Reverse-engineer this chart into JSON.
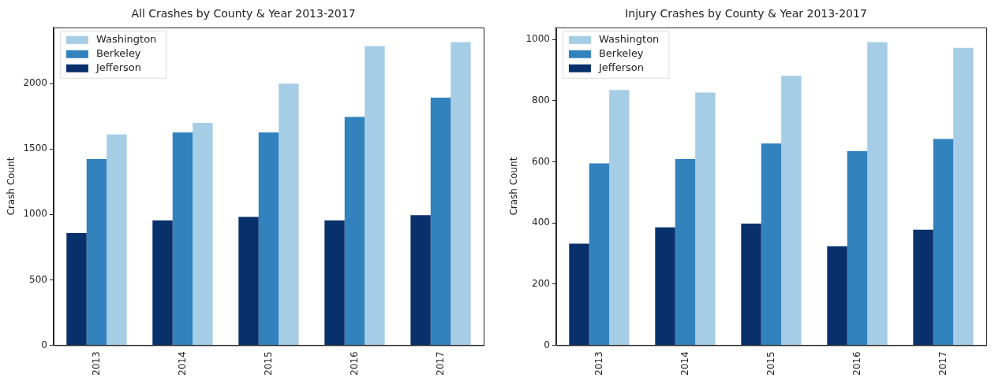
{
  "chart_data": [
    {
      "type": "bar",
      "title": "All Crashes by County & Year 2013-2017",
      "ylabel": "Crash Count",
      "categories": [
        "2013",
        "2014",
        "2015",
        "2016",
        "2017"
      ],
      "series": [
        {
          "name": "Jefferson",
          "color": "#08306b",
          "values": [
            857,
            954,
            981,
            954,
            994
          ]
        },
        {
          "name": "Berkeley",
          "color": "#3182bd",
          "values": [
            1423,
            1626,
            1626,
            1745,
            1893
          ]
        },
        {
          "name": "Washington",
          "color": "#a6cde6",
          "values": [
            1611,
            1700,
            2000,
            2287,
            2317
          ]
        }
      ],
      "ylim": [
        0,
        2430
      ],
      "yticks": [
        0,
        500,
        1000,
        1500,
        2000
      ],
      "grid": false,
      "legend": "top left"
    },
    {
      "type": "bar",
      "title": "Injury Crashes by County & Year 2013-2017",
      "ylabel": "Crash Count",
      "categories": [
        "2013",
        "2014",
        "2015",
        "2016",
        "2017"
      ],
      "series": [
        {
          "name": "Jefferson",
          "color": "#08306b",
          "values": [
            332,
            386,
            398,
            324,
            378
          ]
        },
        {
          "name": "Berkeley",
          "color": "#3182bd",
          "values": [
            595,
            609,
            660,
            635,
            675
          ]
        },
        {
          "name": "Washington",
          "color": "#a6cde6",
          "values": [
            835,
            827,
            882,
            992,
            973
          ]
        }
      ],
      "ylim": [
        0,
        1040
      ],
      "yticks": [
        0,
        200,
        400,
        600,
        800,
        1000
      ],
      "grid": false,
      "legend": "top left"
    }
  ]
}
